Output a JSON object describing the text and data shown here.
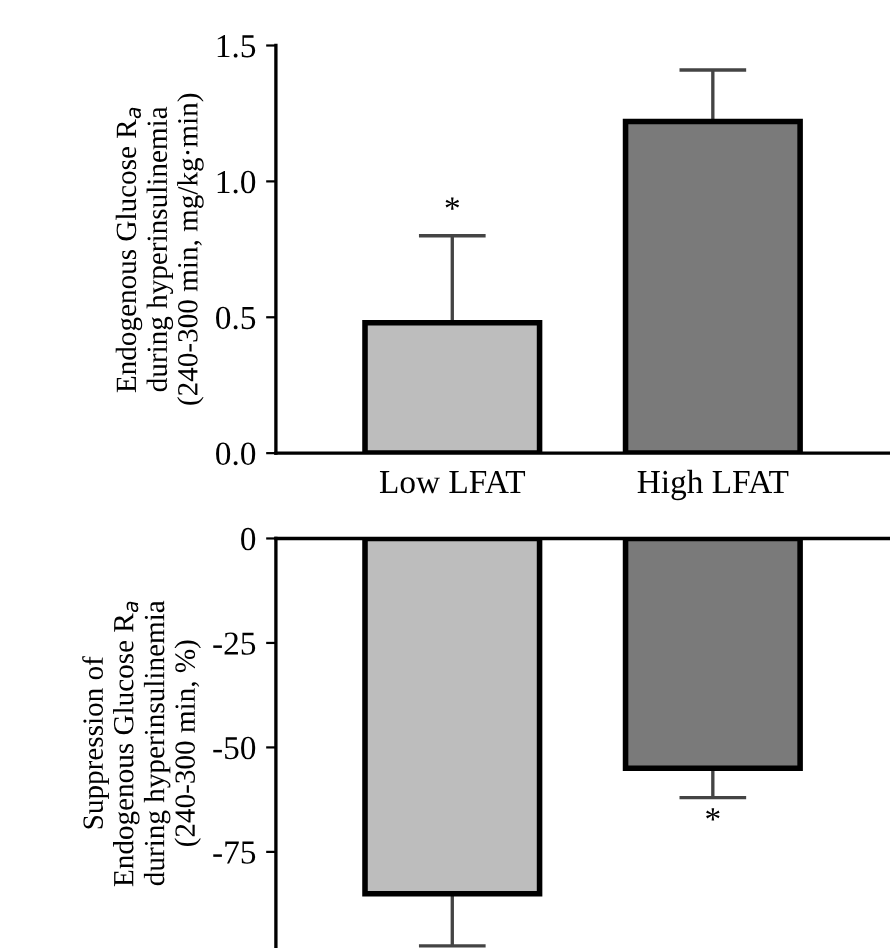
{
  "chart_data": [
    {
      "type": "bar",
      "ylabel": "Endogenous Glucose R$_{a}$\nduring hyperinsulinemia\n(240-300 min, mg/kg·min)",
      "categories": [
        "Low LFAT",
        "High LFAT"
      ],
      "values": [
        0.48,
        1.22
      ],
      "errors": [
        [
          0.48,
          0.8
        ],
        [
          1.22,
          1.41
        ]
      ],
      "colors": [
        "#bdbdbd",
        "#7a7a7a"
      ],
      "ylim": [
        0,
        1.5
      ],
      "yticks": [
        {
          "value": 0,
          "label": "0.0"
        },
        0.5,
        {
          "value": 1,
          "label": "1.0"
        },
        1.5
      ],
      "grid": false,
      "legend": false,
      "annotations": [
        "*"
      ]
    },
    {
      "type": "bar",
      "ylabel": "Suppression of\nEndogenous Glucose R$_{a}$\nduring hyperinsulinemia\n(240-300 min, %)",
      "categories": [
        null,
        null
      ],
      "values": [
        -85,
        -55
      ],
      "errors": [
        [
          -97.5,
          -85
        ],
        [
          -62,
          -55
        ]
      ],
      "colors": [
        "#bdbdbd",
        "#7a7a7a"
      ],
      "ylim": [
        -98,
        0
      ],
      "yticks": [
        -75,
        -50,
        -25,
        0
      ],
      "tick_labels": "y",
      "grid": false,
      "legend": false,
      "annotations": [
        "*"
      ]
    }
  ]
}
